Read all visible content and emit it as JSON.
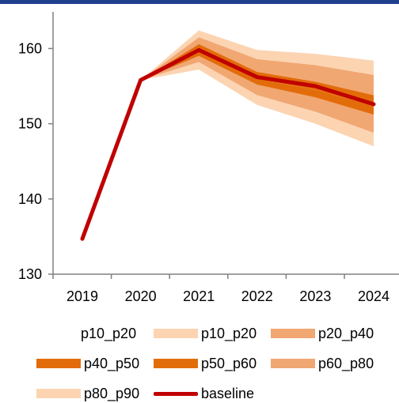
{
  "colors": {
    "header_bar": "#1f3f8f",
    "axis": "#808080",
    "band_outer": "#fcd4b2",
    "band_mid": "#f1a772",
    "band_inner": "#e36c0a",
    "baseline": "#c00000"
  },
  "chart_data": {
    "type": "area",
    "title": "",
    "xlabel": "",
    "ylabel": "",
    "x": [
      "2019",
      "2020",
      "2021",
      "2022",
      "2023",
      "2024"
    ],
    "ylim": [
      130,
      165
    ],
    "yticks": [
      130,
      140,
      150,
      160
    ],
    "grid": false,
    "legend_position": "bottom",
    "bands": [
      {
        "name": "p10_p20",
        "color_key": "band_outer",
        "lower": [
          null,
          155.8,
          157.2,
          152.5,
          150.0,
          147.0
        ],
        "upper": [
          null,
          155.8,
          158.2,
          153.8,
          151.6,
          148.8
        ]
      },
      {
        "name": "p20_p40",
        "color_key": "band_mid",
        "lower": [
          null,
          155.8,
          158.2,
          153.8,
          151.6,
          148.8
        ],
        "upper": [
          null,
          155.8,
          159.0,
          155.2,
          153.5,
          151.2
        ]
      },
      {
        "name": "p40_p50",
        "color_key": "band_inner",
        "lower": [
          null,
          155.8,
          159.0,
          155.2,
          153.5,
          151.2
        ],
        "upper": [
          null,
          155.8,
          159.8,
          156.0,
          154.5,
          152.4
        ]
      },
      {
        "name": "p50_p60",
        "color_key": "band_inner",
        "lower": [
          null,
          155.8,
          159.8,
          156.0,
          154.5,
          152.4
        ],
        "upper": [
          null,
          155.8,
          160.6,
          156.9,
          155.6,
          153.8
        ]
      },
      {
        "name": "p60_p80",
        "color_key": "band_mid",
        "lower": [
          null,
          155.8,
          160.6,
          156.9,
          155.6,
          153.8
        ],
        "upper": [
          null,
          155.8,
          161.5,
          158.6,
          157.8,
          156.5
        ]
      },
      {
        "name": "p80_p90",
        "color_key": "band_outer",
        "lower": [
          null,
          155.8,
          161.5,
          158.6,
          157.8,
          156.5
        ],
        "upper": [
          null,
          155.8,
          162.4,
          159.8,
          159.3,
          158.4
        ]
      }
    ],
    "series": [
      {
        "name": "baseline",
        "color_key": "baseline",
        "values": [
          134.7,
          155.8,
          159.8,
          156.2,
          155.0,
          152.6
        ]
      }
    ]
  },
  "legend": [
    {
      "label": "p10_p20",
      "kind": "none"
    },
    {
      "label": "p10_p20",
      "kind": "swatch",
      "color_key": "band_outer"
    },
    {
      "label": "p20_p40",
      "kind": "swatch",
      "color_key": "band_mid"
    },
    {
      "label": "p40_p50",
      "kind": "swatch",
      "color_key": "band_inner"
    },
    {
      "label": "p50_p60",
      "kind": "swatch",
      "color_key": "band_inner"
    },
    {
      "label": "p60_p80",
      "kind": "swatch",
      "color_key": "band_mid"
    },
    {
      "label": "p80_p90",
      "kind": "swatch",
      "color_key": "band_outer"
    },
    {
      "label": "baseline",
      "kind": "line",
      "color_key": "baseline"
    }
  ]
}
